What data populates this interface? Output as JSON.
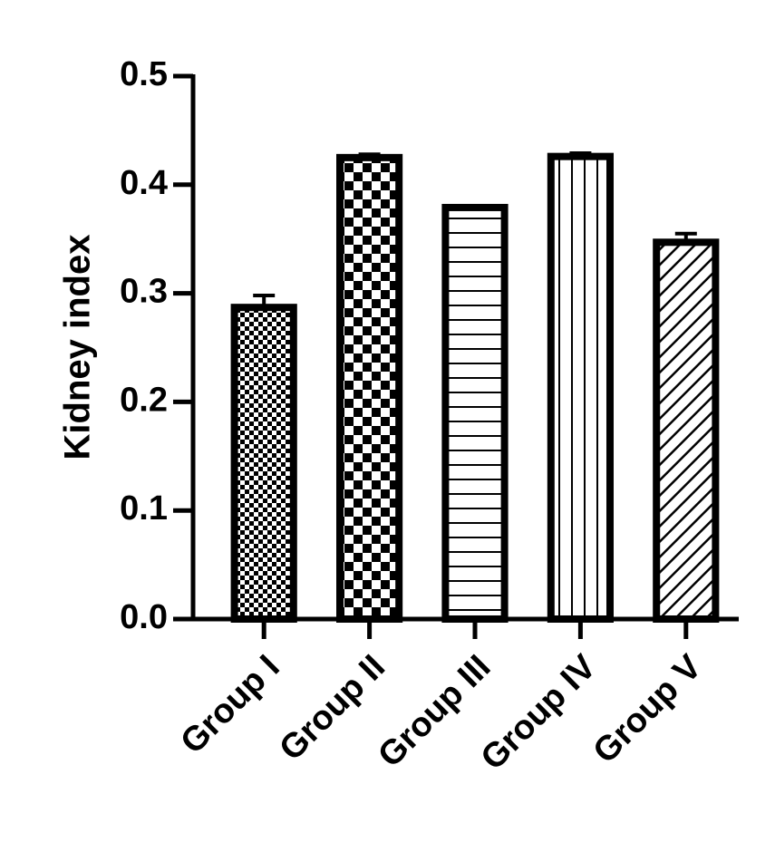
{
  "chart_data": {
    "type": "bar",
    "ylabel": "Kidney index",
    "categories": [
      "Group I",
      "Group II",
      "Group III",
      "Group IV",
      "Group V"
    ],
    "values": [
      0.287,
      0.425,
      0.379,
      0.426,
      0.347
    ],
    "errors": [
      0.011,
      0.003,
      0.001,
      0.003,
      0.008
    ],
    "color": "#000000",
    "ylim": [
      0,
      0.5
    ],
    "yticks": [
      {
        "value": 0,
        "label": "0.0"
      },
      0.1,
      0.2,
      0.3,
      0.4,
      0.5
    ],
    "grid": false
  }
}
